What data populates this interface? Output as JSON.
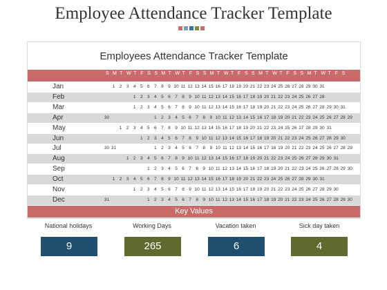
{
  "page": {
    "title": "Employee Attendance Tracker Template",
    "dot_colors": [
      "#c96b6b",
      "#7a9ab8",
      "#3a6f96",
      "#7d8a43",
      "#c96b6b"
    ]
  },
  "tracker": {
    "title": "Employees Attendance Tracker Template",
    "weekday_headers": [
      "S",
      "M",
      "T",
      "W",
      "T",
      "F",
      "S",
      "S",
      "M",
      "T",
      "W",
      "T",
      "F",
      "S",
      "S",
      "M",
      "T",
      "W",
      "T",
      "F",
      "S",
      "S",
      "M",
      "T",
      "W",
      "T",
      "F",
      "S",
      "S",
      "M",
      "T",
      "W",
      "T",
      "F",
      "S"
    ],
    "months": [
      {
        "name": "Jan",
        "days": [
          null,
          1,
          2,
          3,
          4,
          5,
          6,
          7,
          8,
          9,
          10,
          11,
          12,
          13,
          14,
          15,
          16,
          17,
          18,
          19,
          20,
          21,
          22,
          23,
          24,
          25,
          26,
          27,
          28,
          29,
          30,
          31
        ]
      },
      {
        "name": "Feb",
        "days": [
          null,
          null,
          null,
          null,
          1,
          2,
          3,
          4,
          5,
          6,
          7,
          8,
          9,
          10,
          11,
          12,
          13,
          14,
          15,
          16,
          17,
          18,
          19,
          20,
          21,
          22,
          23,
          24,
          25,
          26,
          27,
          28
        ]
      },
      {
        "name": "Mar",
        "days": [
          null,
          null,
          null,
          null,
          1,
          2,
          3,
          4,
          5,
          6,
          7,
          8,
          9,
          10,
          11,
          12,
          13,
          14,
          15,
          16,
          17,
          18,
          19,
          20,
          21,
          22,
          23,
          24,
          25,
          26,
          27,
          28,
          29,
          30,
          31
        ]
      },
      {
        "name": "Apr",
        "days": [
          30,
          null,
          null,
          null,
          null,
          null,
          null,
          1,
          2,
          3,
          4,
          5,
          6,
          7,
          8,
          9,
          10,
          11,
          12,
          13,
          14,
          15,
          16,
          17,
          18,
          19,
          20,
          21,
          22,
          23,
          24,
          25,
          26,
          27,
          28,
          29
        ]
      },
      {
        "name": "May",
        "days": [
          null,
          null,
          1,
          2,
          3,
          4,
          5,
          6,
          7,
          8,
          9,
          10,
          11,
          12,
          13,
          14,
          15,
          16,
          17,
          18,
          19,
          20,
          21,
          22,
          23,
          24,
          25,
          26,
          27,
          28,
          29,
          30,
          31
        ]
      },
      {
        "name": "Jun",
        "days": [
          null,
          null,
          null,
          null,
          null,
          1,
          2,
          3,
          4,
          5,
          6,
          7,
          8,
          9,
          10,
          11,
          12,
          13,
          14,
          15,
          16,
          17,
          18,
          19,
          20,
          21,
          22,
          23,
          24,
          25,
          26,
          27,
          28,
          29,
          30
        ]
      },
      {
        "name": "Jul",
        "days": [
          30,
          31,
          null,
          null,
          null,
          null,
          null,
          1,
          2,
          3,
          4,
          5,
          6,
          7,
          8,
          9,
          10,
          11,
          12,
          13,
          14,
          15,
          16,
          17,
          18,
          19,
          20,
          21,
          22,
          23,
          24,
          25,
          26,
          27,
          28,
          29
        ]
      },
      {
        "name": "Aug",
        "days": [
          null,
          null,
          null,
          1,
          2,
          3,
          4,
          5,
          6,
          7,
          8,
          9,
          10,
          11,
          12,
          13,
          14,
          15,
          16,
          17,
          18,
          19,
          20,
          21,
          22,
          23,
          24,
          25,
          26,
          27,
          28,
          29,
          30,
          31
        ]
      },
      {
        "name": "Sep",
        "days": [
          null,
          null,
          null,
          null,
          null,
          null,
          1,
          2,
          3,
          4,
          5,
          6,
          7,
          8,
          9,
          10,
          11,
          12,
          13,
          14,
          15,
          16,
          17,
          18,
          19,
          20,
          21,
          22,
          23,
          24,
          25,
          26,
          27,
          28,
          29,
          30
        ]
      },
      {
        "name": "Oct",
        "days": [
          null,
          1,
          2,
          3,
          4,
          5,
          6,
          7,
          8,
          9,
          10,
          11,
          12,
          13,
          14,
          15,
          16,
          17,
          18,
          19,
          20,
          21,
          22,
          23,
          24,
          25,
          26,
          27,
          28,
          29,
          30,
          31
        ]
      },
      {
        "name": "Nov",
        "days": [
          null,
          null,
          null,
          null,
          1,
          2,
          3,
          4,
          5,
          6,
          7,
          8,
          9,
          10,
          11,
          12,
          13,
          14,
          15,
          16,
          17,
          18,
          19,
          20,
          21,
          22,
          23,
          24,
          25,
          26,
          27,
          28,
          29,
          30
        ]
      },
      {
        "name": "Dec",
        "days": [
          31,
          null,
          null,
          null,
          null,
          null,
          1,
          2,
          3,
          4,
          5,
          6,
          7,
          8,
          9,
          10,
          11,
          12,
          13,
          14,
          15,
          16,
          17,
          18,
          19,
          20,
          21,
          22,
          23,
          24,
          25,
          26,
          27,
          28,
          29,
          30
        ]
      }
    ],
    "key_values_label": "Key  Values"
  },
  "stats": [
    {
      "label": "National holidays",
      "value": "9",
      "color": "#1f4e6e"
    },
    {
      "label": "Working  Days",
      "value": "265",
      "color": "#5f6a2e"
    },
    {
      "label": "Vacation taken",
      "value": "6",
      "color": "#1f4e6e"
    },
    {
      "label": "Sick day taken",
      "value": "4",
      "color": "#5f6a2e"
    }
  ]
}
